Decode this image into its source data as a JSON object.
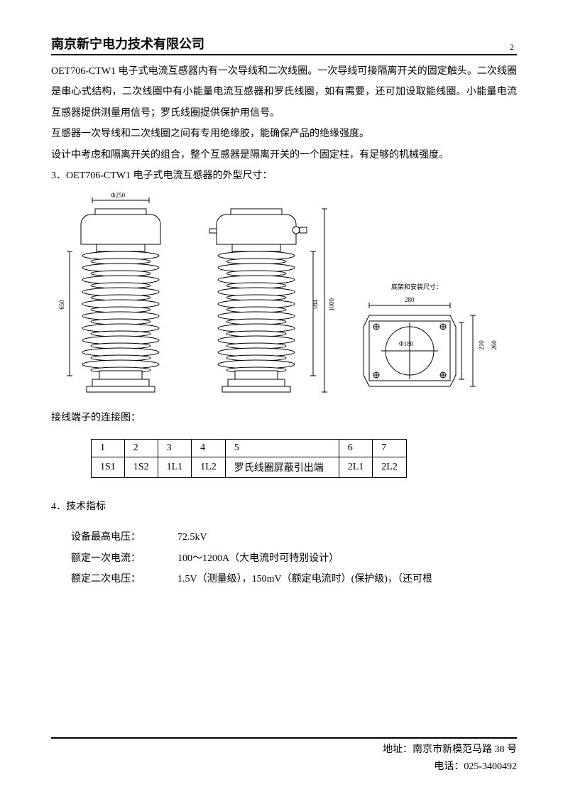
{
  "header": {
    "company": "南京新宁电力技术有限公司",
    "page_number": "2"
  },
  "body": {
    "paragraphs": [
      "OET706-CTW1 电子式电流互感器内有一次导线和二次线圈。一次导线可接隔离开关的固定触头。二次线圈是串心式结构，二次线圈中有小能量电流互感器和罗氏线圈，如有需要，还可加设取能线圈。小能量电流互感器提供测量用信号；罗氏线圈提供保护用信号。",
      "互感器一次导线和二次线圈之间有专用绝缘胶，能确保产品的绝缘强度。",
      "设计中考虑和隔离开关的组合，整个互感器是隔离开关的一个固定柱，有足够的机械强度。"
    ],
    "section3_title": "3．OET706-CTW1 电子式电流互感器的外型尺寸：",
    "terminal_title": "接线端子的连接图：",
    "section4_title": "4．技术指标"
  },
  "diagrams": {
    "front": {
      "top_dim": "Φ250",
      "height_dim": "650",
      "fin_count": 10,
      "colors": {
        "stroke": "#000000",
        "fill": "#ffffff"
      }
    },
    "side": {
      "mid_dim": "584",
      "total_dim": "1000",
      "fin_count": 10,
      "colors": {
        "stroke": "#000000",
        "fill": "#ffffff"
      }
    },
    "base": {
      "caption": "底架和安装尺寸：",
      "outer_w": "340",
      "inner_w": "280",
      "inner_h": "210",
      "outer_h": "260",
      "circle_label": "Φ180",
      "colors": {
        "stroke": "#000000",
        "fill": "#ffffff"
      }
    }
  },
  "terminals": {
    "headers": [
      "1",
      "2",
      "3",
      "4",
      "5",
      "6",
      "7"
    ],
    "values": [
      "1S1",
      "1S2",
      "1L1",
      "1L2",
      "罗氏线圈屏蔽引出端",
      "2L1",
      "2L2"
    ]
  },
  "specs": [
    {
      "label": "设备最高电压：",
      "value": "72.5kV"
    },
    {
      "label": "额定一次电流：",
      "value": "100～1200A（大电流时可特别设计）"
    },
    {
      "label": "额定二次电压：",
      "value": "1.5V（测量级），150mV（额定电流时）(保护级)，（还可根"
    }
  ],
  "footer": {
    "address": "地址：南京市新模范马路 38 号",
    "phone": "电话：025-3400492"
  }
}
